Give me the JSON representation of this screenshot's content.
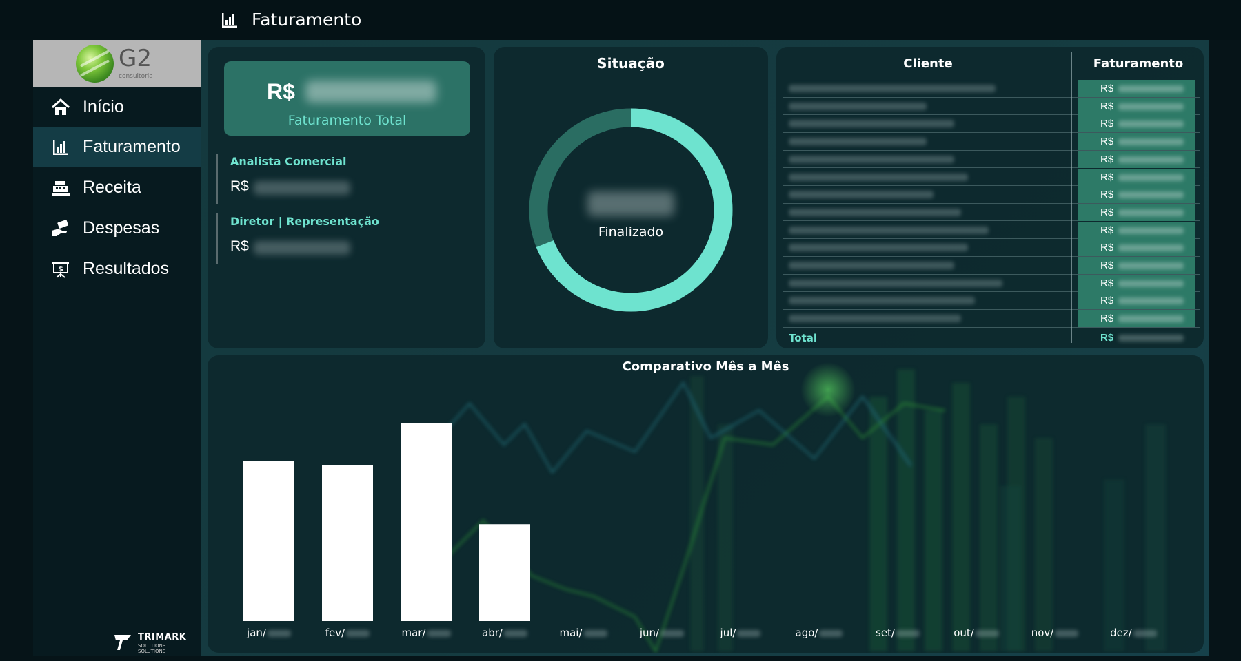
{
  "header": {
    "title": "Faturamento",
    "icon": "bar-chart-icon"
  },
  "sidebar": {
    "logo": {
      "brand": "G2",
      "subtitle": "consultoria"
    },
    "items": [
      {
        "label": "Início",
        "icon": "home-icon",
        "active": false
      },
      {
        "label": "Faturamento",
        "icon": "bar-chart-icon",
        "active": true
      },
      {
        "label": "Receita",
        "icon": "cash-register-icon",
        "active": false
      },
      {
        "label": "Despesas",
        "icon": "hand-money-icon",
        "active": false
      },
      {
        "label": "Resultados",
        "icon": "presentation-dollar-icon",
        "active": false
      }
    ],
    "footer_logo": {
      "name": "TRIMARK",
      "line1": "SOLUTIONS",
      "line2": "SOLUTIONS"
    }
  },
  "kpi": {
    "currency": "R$",
    "label": "Faturamento Total"
  },
  "analysts": [
    {
      "label": "Analista Comercial",
      "currency": "R$"
    },
    {
      "label": "Diretor | Representação",
      "currency": "R$"
    }
  ],
  "situacao": {
    "title": "Situação",
    "label": "Finalizado",
    "fraction": 0.69,
    "colors": {
      "done": "#6ee3cf",
      "rest": "#2a6d62"
    }
  },
  "table": {
    "col_client": "Cliente",
    "col_fat": "Faturamento",
    "row_currency": "R$",
    "row_count": 14,
    "total_label": "Total",
    "total_currency": "R$"
  },
  "chart_data": {
    "type": "bar",
    "title": "Comparativo Mês a Mês",
    "categories": [
      "jan/",
      "fev/",
      "mar/",
      "abr/",
      "mai/",
      "jun/",
      "jul/",
      "ago/",
      "set/",
      "out/",
      "nov/",
      "dez/"
    ],
    "values": [
      0.81,
      0.79,
      1.0,
      0.49,
      null,
      null,
      null,
      null,
      null,
      null,
      null,
      null
    ],
    "ylim": [
      0,
      1.1
    ],
    "grid": false,
    "colors": {
      "bar": "#ffffff"
    }
  }
}
